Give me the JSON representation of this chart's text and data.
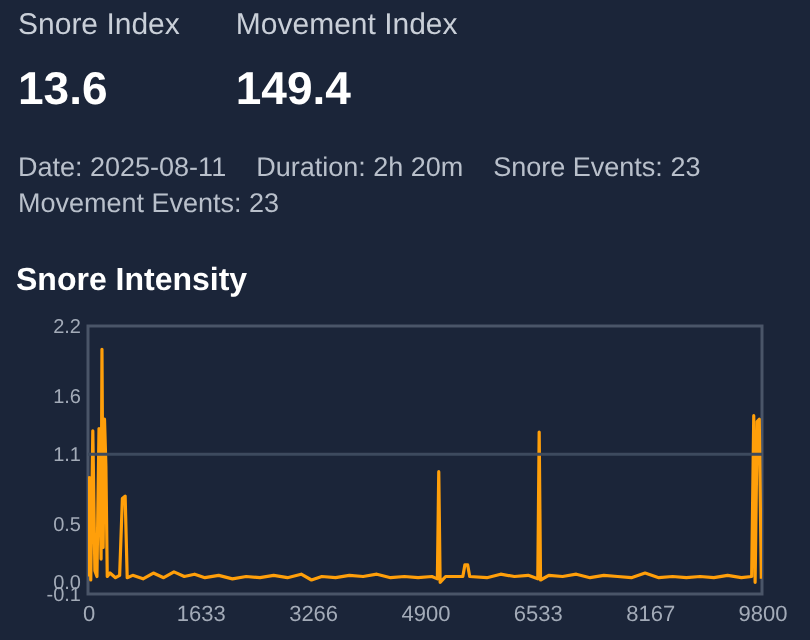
{
  "chart_data": [
    {
      "type": "other",
      "annotations": [
        "Snore Index",
        "13.6",
        "Movement Index",
        "149.4",
        "Date: 2025-08-11",
        "Duration: 2h 20m",
        "Snore Events: 23",
        "Movement Events: 23"
      ]
    },
    {
      "type": "line",
      "title": "Snore Intensity",
      "x": [
        0,
        20,
        40,
        70,
        100,
        130,
        160,
        190,
        203,
        220,
        240,
        260,
        280,
        320,
        400,
        460,
        500,
        540,
        570,
        650,
        800,
        950,
        1100,
        1250,
        1400,
        1550,
        1700,
        1900,
        2100,
        2300,
        2500,
        2700,
        2900,
        3100,
        3250,
        3400,
        3600,
        3800,
        4000,
        4200,
        4400,
        4600,
        4800,
        5000,
        5080,
        5100,
        5120,
        5200,
        5450,
        5480,
        5520,
        5550,
        5800,
        6000,
        6200,
        6400,
        6540,
        6560,
        6580,
        6700,
        6900,
        7100,
        7300,
        7500,
        7700,
        7900,
        8100,
        8300,
        8500,
        8700,
        8900,
        9100,
        9300,
        9500,
        9650,
        9680,
        9700,
        9730,
        9760,
        9790
      ],
      "series": [
        {
          "color": "#ff9f0a",
          "values": [
            0.05,
            0.9,
            0.02,
            1.3,
            0.1,
            0.05,
            1.32,
            0.2,
            2.0,
            0.3,
            1.4,
            1.0,
            0.05,
            0.08,
            0.04,
            0.06,
            0.72,
            0.74,
            0.04,
            0.06,
            0.03,
            0.08,
            0.04,
            0.09,
            0.05,
            0.07,
            0.04,
            0.06,
            0.03,
            0.05,
            0.04,
            0.06,
            0.04,
            0.07,
            0.02,
            0.05,
            0.04,
            0.06,
            0.05,
            0.07,
            0.04,
            0.05,
            0.04,
            0.05,
            0.03,
            0.95,
            0.0,
            0.05,
            0.05,
            0.15,
            0.15,
            0.05,
            0.04,
            0.07,
            0.05,
            0.06,
            0.03,
            1.29,
            0.02,
            0.06,
            0.05,
            0.07,
            0.04,
            0.06,
            0.05,
            0.04,
            0.08,
            0.04,
            0.05,
            0.04,
            0.05,
            0.04,
            0.06,
            0.04,
            0.05,
            1.43,
            0.0,
            1.38,
            1.4,
            0.03
          ]
        }
      ],
      "xlim": [
        0,
        9800
      ],
      "xticks": [
        0,
        1633,
        3266,
        4900,
        6533,
        8167,
        9800
      ],
      "ylim": [
        -0.1,
        2.2
      ],
      "yticks": [
        -0.1,
        {
          "value": 0,
          "label": "0.0"
        },
        0.5,
        1.1,
        1.6,
        2.2
      ],
      "ref_lines": [
        {
          "axis": "y",
          "value": 1.1,
          "color": "#3d4a5e"
        }
      ],
      "marker": "none",
      "line_style": "solid",
      "grid": false,
      "legend": false
    }
  ]
}
